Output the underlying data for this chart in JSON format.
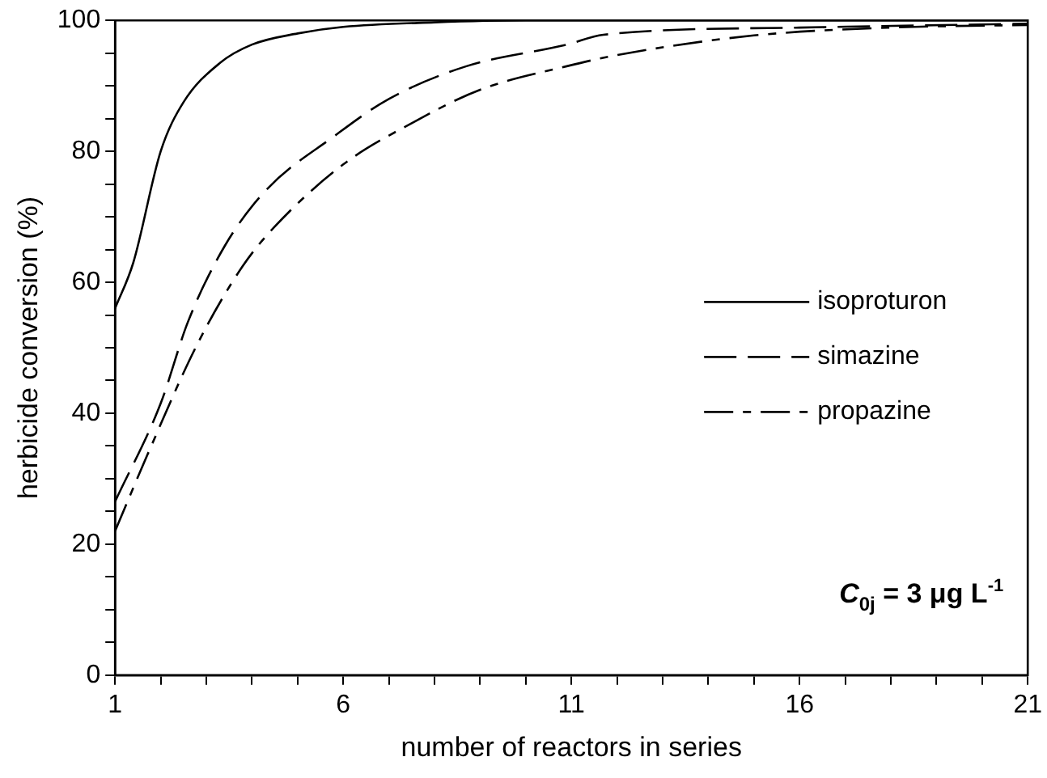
{
  "chart_data": {
    "type": "line",
    "xlabel": "number of reactors in series",
    "ylabel": "herbicide conversion (%)",
    "xlim": [
      1,
      21
    ],
    "ylim": [
      0,
      100
    ],
    "xticks": [
      1,
      {
        "value": 2,
        "label": null
      },
      {
        "value": 3,
        "label": null
      },
      {
        "value": 4,
        "label": null
      },
      {
        "value": 5,
        "label": null
      },
      6,
      {
        "value": 7,
        "label": null
      },
      {
        "value": 8,
        "label": null
      },
      {
        "value": 9,
        "label": null
      },
      {
        "value": 10,
        "label": null
      },
      11,
      {
        "value": 12,
        "label": null
      },
      {
        "value": 13,
        "label": null
      },
      {
        "value": 14,
        "label": null
      },
      {
        "value": 15,
        "label": null
      },
      16,
      {
        "value": 17,
        "label": null
      },
      {
        "value": 18,
        "label": null
      },
      {
        "value": 19,
        "label": null
      },
      {
        "value": 20,
        "label": null
      },
      21
    ],
    "yticks": [
      0,
      {
        "value": 5,
        "label": null
      },
      {
        "value": 10,
        "label": null
      },
      {
        "value": 15,
        "label": null
      },
      20,
      {
        "value": 25,
        "label": null
      },
      {
        "value": 30,
        "label": null
      },
      {
        "value": 35,
        "label": null
      },
      40,
      {
        "value": 45,
        "label": null
      },
      {
        "value": 50,
        "label": null
      },
      {
        "value": 55,
        "label": null
      },
      60,
      {
        "value": 65,
        "label": null
      },
      {
        "value": 70,
        "label": null
      },
      {
        "value": 75,
        "label": null
      },
      80,
      {
        "value": 85,
        "label": null
      },
      {
        "value": 90,
        "label": null
      },
      {
        "value": 95,
        "label": null
      },
      100
    ],
    "grid": false,
    "legend": "right",
    "marker": "none",
    "annotations": [
      "C$_{0j}$ = 3 μg L$^{-1}$"
    ],
    "series": [
      {
        "name": "isoproturon",
        "color": "#000000",
        "line_style": "solid",
        "x": [
          1,
          1.4,
          2,
          2.5,
          3.3,
          4,
          5,
          6,
          8,
          10,
          14,
          21
        ],
        "values": [
          56,
          63,
          80,
          87.5,
          93.5,
          96.3,
          98,
          99,
          99.7,
          100,
          100,
          100
        ]
      },
      {
        "name": "simazine",
        "color": "#000000",
        "line_style": "dashed",
        "x": [
          1,
          2,
          2.6,
          3.4,
          4.3,
          5.8,
          7,
          8.7,
          10.9,
          11.7,
          16,
          21
        ],
        "values": [
          26.5,
          41.5,
          54,
          65.5,
          74,
          82.3,
          88,
          93,
          96.3,
          97.8,
          98.9,
          99.5
        ]
      },
      {
        "name": "propazine",
        "color": "#000000",
        "line_style": "dashed",
        "x": [
          1,
          1.7,
          2.8,
          3.8,
          4.5,
          6,
          7.5,
          9,
          10.9,
          12,
          15,
          18,
          21
        ],
        "values": [
          22,
          33.5,
          50.5,
          62.5,
          68.5,
          78,
          84.3,
          89.4,
          93,
          94.7,
          97.7,
          98.9,
          99.3
        ]
      }
    ]
  }
}
